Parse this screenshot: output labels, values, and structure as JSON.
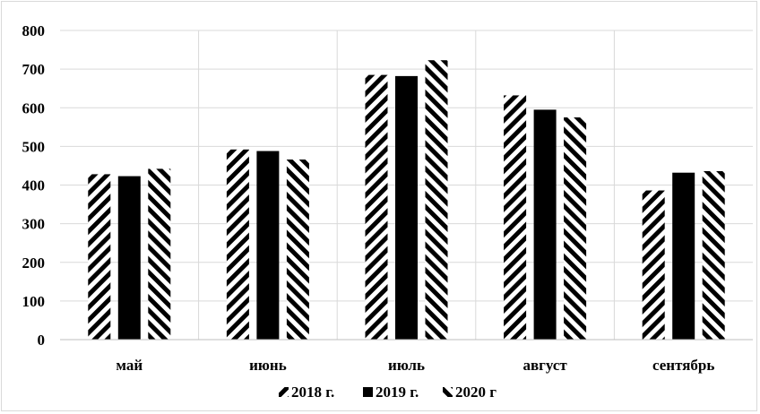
{
  "chart_data": {
    "type": "bar",
    "categories": [
      "май",
      "июнь",
      "июль",
      "август",
      "сентябрь"
    ],
    "series": [
      {
        "name": "2018 г.",
        "values": [
          428,
          492,
          685,
          632,
          386
        ],
        "pattern": "diagonal-forward"
      },
      {
        "name": "2019 г.",
        "values": [
          423,
          488,
          682,
          595,
          432
        ],
        "pattern": "solid"
      },
      {
        "name": "2020 г",
        "values": [
          442,
          466,
          723,
          575,
          436
        ],
        "pattern": "diagonal-backward"
      }
    ],
    "ylim": [
      0,
      800
    ],
    "yticks": [
      0,
      100,
      200,
      300,
      400,
      500,
      600,
      700,
      800
    ],
    "grid": true,
    "legend_position": "bottom",
    "colors": {
      "bar": "#000000",
      "grid": "#d9d9d9",
      "axis": "#bfbfbf",
      "background": "#ffffff"
    }
  }
}
